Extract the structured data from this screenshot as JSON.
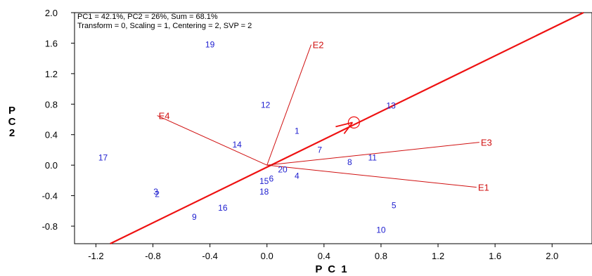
{
  "chart_data": {
    "type": "scatter",
    "info_lines": [
      "PC1 = 42.1%, PC2 = 26%, Sum = 68.1%",
      "Transform = 0, Scaling = 1, Centering = 2, SVP = 2"
    ],
    "xlabel": "P C 1",
    "ylabel": "P C 2",
    "xlim": [
      -1.35,
      2.28
    ],
    "ylim": [
      -1.03,
      2.0
    ],
    "xticks": [
      -1.2,
      -0.8,
      -0.4,
      0.0,
      0.4,
      0.8,
      1.2,
      1.6,
      2.0
    ],
    "xtick_labels": [
      "-1.2",
      "-0.8",
      "-0.4",
      "0.0",
      "0.4",
      "0.8",
      "1.2",
      "1.6",
      "2.0"
    ],
    "yticks": [
      -0.8,
      -0.4,
      0.0,
      0.4,
      0.8,
      1.2,
      1.6,
      2.0
    ],
    "ytick_labels": [
      "-0.8",
      "-0.4",
      "0.0",
      "0.4",
      "0.8",
      "1.2",
      "1.6",
      "2.0"
    ],
    "genotypes": [
      {
        "label": "1",
        "x": 0.21,
        "y": 0.45
      },
      {
        "label": "2",
        "x": -0.77,
        "y": -0.38
      },
      {
        "label": "3",
        "x": -0.78,
        "y": -0.35
      },
      {
        "label": "4",
        "x": 0.21,
        "y": -0.14
      },
      {
        "label": "5",
        "x": 0.89,
        "y": -0.53
      },
      {
        "label": "6",
        "x": 0.03,
        "y": -0.18
      },
      {
        "label": "7",
        "x": 0.37,
        "y": 0.2
      },
      {
        "label": "8",
        "x": 0.58,
        "y": 0.04
      },
      {
        "label": "9",
        "x": -0.51,
        "y": -0.68
      },
      {
        "label": "10",
        "x": 0.8,
        "y": -0.85
      },
      {
        "label": "11",
        "x": 0.74,
        "y": 0.1
      },
      {
        "label": "12",
        "x": -0.01,
        "y": 0.79
      },
      {
        "label": "13",
        "x": 0.87,
        "y": 0.78
      },
      {
        "label": "14",
        "x": -0.21,
        "y": 0.27
      },
      {
        "label": "15",
        "x": -0.02,
        "y": -0.21
      },
      {
        "label": "16",
        "x": -0.31,
        "y": -0.56
      },
      {
        "label": "17",
        "x": -1.15,
        "y": 0.1
      },
      {
        "label": "18",
        "x": -0.02,
        "y": -0.35
      },
      {
        "label": "19",
        "x": -0.4,
        "y": 1.58
      },
      {
        "label": "20",
        "x": 0.11,
        "y": -0.06
      }
    ],
    "environments": [
      {
        "label": "E1",
        "x": 1.47,
        "y": -0.29
      },
      {
        "label": "E2",
        "x": 0.31,
        "y": 1.58
      },
      {
        "label": "E3",
        "x": 1.49,
        "y": 0.3
      },
      {
        "label": "E4",
        "x": -0.77,
        "y": 0.65
      }
    ],
    "aec_abscissa": {
      "through": [
        [
          -1.1,
          -1.03
        ],
        [
          2.22,
          2.0
        ]
      ],
      "circle_center": {
        "x": 0.61,
        "y": 0.56
      }
    },
    "colors": {
      "genotype": "#2020d0",
      "environment": "#d01010",
      "axis_line": "#ee1111"
    }
  }
}
